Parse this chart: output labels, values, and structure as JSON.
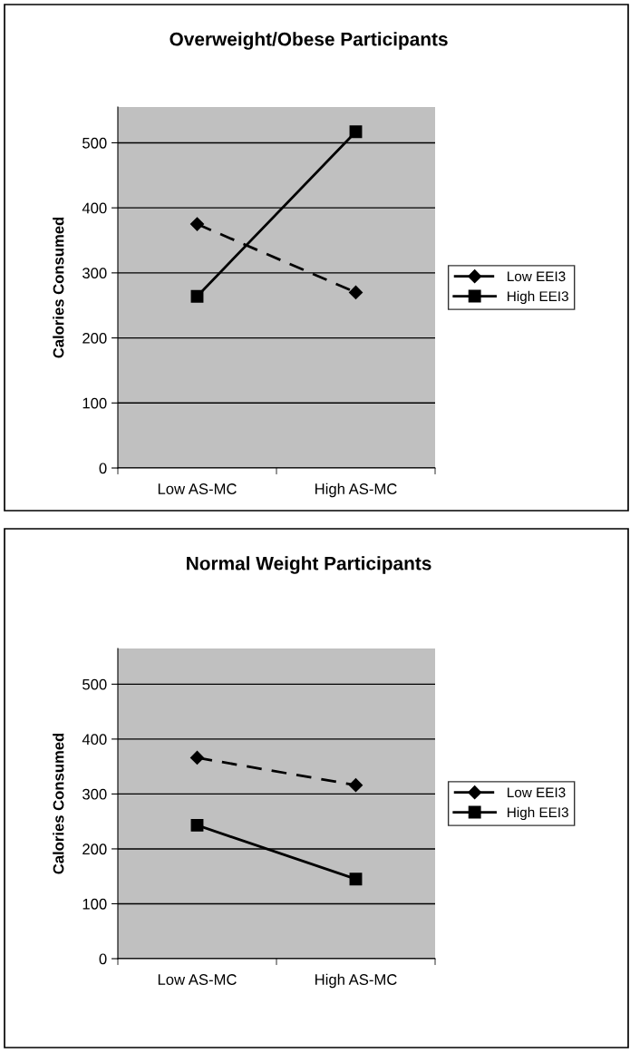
{
  "chart_data": [
    {
      "type": "line",
      "title": "Overweight/Obese Participants",
      "ylabel": "Calories Consumed",
      "categories": [
        "Low AS-MC",
        "High AS-MC"
      ],
      "series": [
        {
          "name": "Low EEI3",
          "color": "#000000",
          "values": [
            375,
            270
          ],
          "marker": "diamond",
          "line_style": "dashed"
        },
        {
          "name": "High EEI3",
          "color": "#000000",
          "values": [
            264,
            517
          ],
          "marker": "square",
          "line_style": "solid"
        }
      ],
      "ylim": [
        0,
        555
      ],
      "yticks": [
        0,
        100,
        200,
        300,
        400,
        500
      ],
      "grid": "y",
      "legend": "right"
    },
    {
      "type": "line",
      "title": "Normal Weight Participants",
      "ylabel": "Calories Consumed",
      "categories": [
        "Low AS-MC",
        "High AS-MC"
      ],
      "series": [
        {
          "name": "Low EEI3",
          "color": "#000000",
          "values": [
            366,
            316
          ],
          "marker": "diamond",
          "line_style": "dashed"
        },
        {
          "name": "High EEI3",
          "color": "#000000",
          "values": [
            243,
            145
          ],
          "marker": "square",
          "line_style": "solid"
        }
      ],
      "ylim": [
        0,
        565
      ],
      "yticks": [
        0,
        100,
        200,
        300,
        400,
        500
      ],
      "grid": "y",
      "legend": "right"
    }
  ]
}
